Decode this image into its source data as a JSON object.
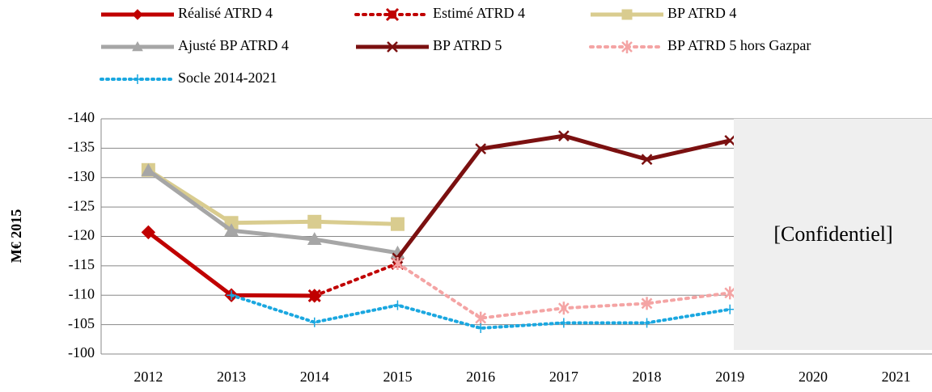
{
  "chart_data": {
    "type": "line",
    "y_label": "M€  2015",
    "annotation": "[Confidentiel]",
    "categories": [
      "2012",
      "2013",
      "2014",
      "2015",
      "2016",
      "2017",
      "2018",
      "2019",
      "2020",
      "2021"
    ],
    "ylim": [
      -100,
      -140
    ],
    "yticks": [
      -140,
      -135,
      -130,
      -125,
      -120,
      -115,
      -110,
      -105,
      -100
    ],
    "grid": true,
    "series": [
      {
        "name": "Réalisé ATRD 4",
        "color": "#c00000",
        "style": "solid",
        "marker": "diamond",
        "values": [
          -120.7,
          -110,
          -109.9,
          null,
          null,
          null,
          null,
          null,
          null,
          null
        ]
      },
      {
        "name": "Estimé ATRD 4",
        "color": "#c00000",
        "style": "dotted",
        "marker": "xsquare",
        "values": [
          null,
          null,
          -109.9,
          -115.4,
          null,
          null,
          null,
          null,
          null,
          null
        ]
      },
      {
        "name": "BP ATRD 4",
        "color": "#d9cc8f",
        "style": "solid",
        "marker": "square",
        "values": [
          -131.3,
          -122.3,
          -122.5,
          -122.1,
          null,
          null,
          null,
          null,
          null,
          null
        ]
      },
      {
        "name": "Ajusté BP ATRD 4",
        "color": "#a6a6a6",
        "style": "solid",
        "marker": "triangle",
        "values": [
          -131.2,
          -121,
          -119.5,
          -117.2,
          null,
          null,
          null,
          null,
          null,
          null
        ]
      },
      {
        "name": "BP ATRD 5",
        "color": "#7b1010",
        "style": "solid",
        "marker": "x",
        "values": [
          null,
          null,
          null,
          -116.3,
          -134.9,
          -137.1,
          -133.1,
          -136.3,
          null,
          null
        ]
      },
      {
        "name": "BP ATRD 5 hors Gazpar",
        "color": "#f4a4a4",
        "style": "dotted",
        "marker": "asterisk",
        "values": [
          null,
          null,
          null,
          -115.4,
          -106.1,
          -107.8,
          -108.6,
          -110.4,
          null,
          null
        ]
      },
      {
        "name": "Socle 2014-2021",
        "color": "#1aa7e0",
        "style": "dotted",
        "marker": "plus",
        "values": [
          null,
          -110,
          -105.4,
          -108.3,
          -104.4,
          -105.3,
          -105.3,
          -107.6,
          null,
          null
        ]
      }
    ]
  }
}
